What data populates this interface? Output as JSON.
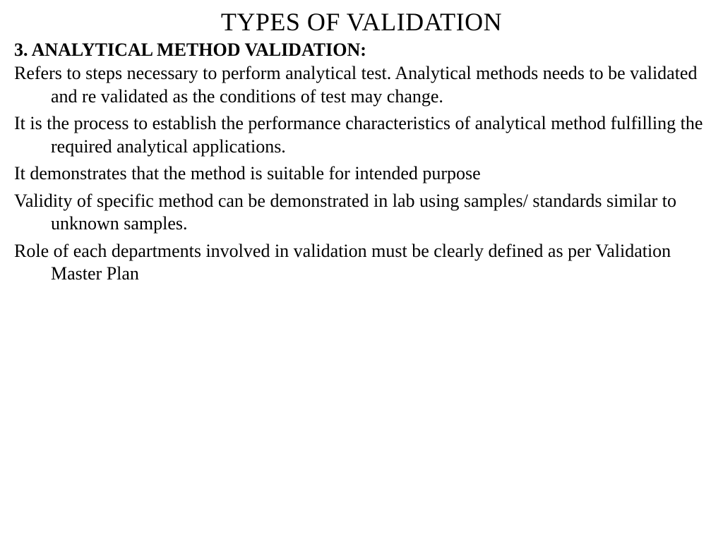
{
  "slide": {
    "title": "TYPES OF VALIDATION",
    "section_heading": "3. ANALYTICAL METHOD VALIDATION:",
    "paragraphs": [
      "Refers to steps necessary to perform analytical test. Analytical methods needs to be validated and re validated as the conditions of test may change.",
      "It is the process to establish the performance characteristics of analytical method fulfilling the required analytical applications.",
      "It demonstrates that the method is suitable for intended purpose",
      "Validity of specific method can be demonstrated in lab using samples/ standards similar to unknown samples.",
      "Role of each departments involved in validation must be clearly defined as per Validation Master Plan"
    ]
  },
  "style": {
    "background_color": "#ffffff",
    "text_color": "#000000",
    "title_fontsize": 36,
    "heading_fontsize": 26,
    "body_fontsize": 26,
    "font_family": "Times New Roman"
  }
}
